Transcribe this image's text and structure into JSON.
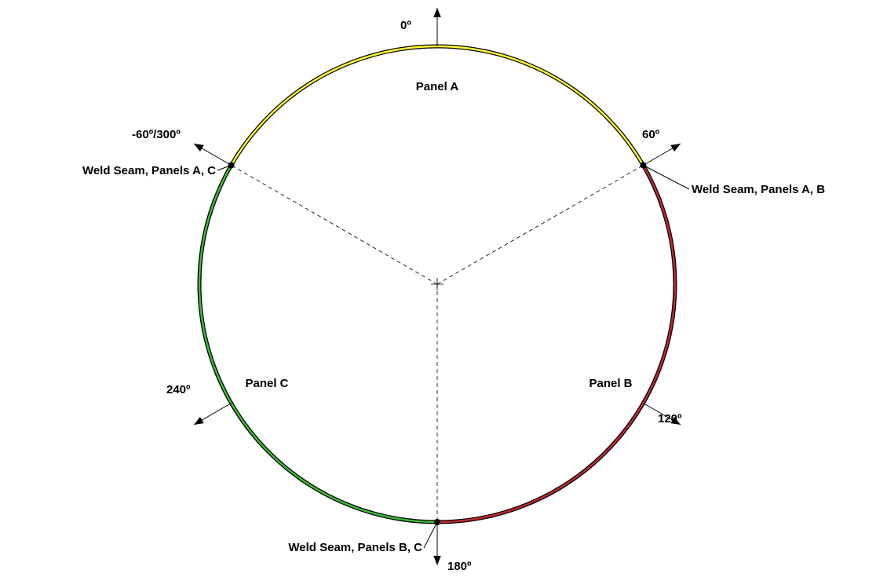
{
  "angles": [
    "0º",
    "60º",
    "120º",
    "180º",
    "240º",
    "-60º/300º"
  ],
  "panels": [
    "Panel A",
    "Panel B",
    "Panel C"
  ],
  "seams": [
    "Weld Seam, Panels A, B",
    "Weld Seam, Panels A, C",
    "Weld Seam, Panels B, C"
  ]
}
